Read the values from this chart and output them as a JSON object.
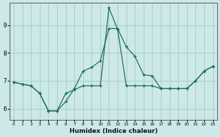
{
  "xlabel": "Humidex (Indice chaleur)",
  "ylabel": "",
  "background_color": "#cce8e8",
  "line_color": "#1a6b5a",
  "grid_color": "#aacccc",
  "xlim": [
    -0.5,
    23.5
  ],
  "ylim": [
    5.6,
    9.8
  ],
  "yticks": [
    6,
    7,
    8,
    9
  ],
  "xtick_labels": [
    "0",
    "1",
    "2",
    "3",
    "4",
    "5",
    "6",
    "7",
    "8",
    "9",
    "10",
    "11",
    "12",
    "13",
    "14",
    "15",
    "16",
    "17",
    "18",
    "19",
    "20",
    "21",
    "22",
    "23"
  ],
  "line1_x": [
    0,
    1,
    2,
    3,
    4,
    5,
    6,
    7,
    8,
    9,
    10,
    11,
    12,
    13,
    14,
    15,
    16,
    17,
    18,
    19,
    20,
    21,
    22,
    23
  ],
  "line1_y": [
    6.95,
    6.88,
    6.82,
    6.55,
    5.92,
    5.92,
    6.55,
    6.68,
    6.82,
    6.82,
    6.82,
    9.62,
    8.85,
    6.82,
    6.82,
    6.82,
    6.82,
    6.72,
    6.72,
    6.72,
    6.72,
    7.0,
    7.35,
    7.52
  ],
  "line2_x": [
    0,
    1,
    2,
    3,
    4,
    5,
    6,
    7,
    8,
    9,
    10,
    11,
    12,
    13,
    14,
    15,
    16,
    17,
    18,
    19,
    20,
    21,
    22,
    23
  ],
  "line2_y": [
    6.95,
    6.88,
    6.82,
    6.55,
    5.92,
    5.92,
    6.25,
    6.72,
    7.35,
    7.48,
    7.72,
    8.88,
    8.88,
    8.22,
    7.88,
    7.22,
    7.18,
    6.72,
    6.72,
    6.72,
    6.72,
    7.0,
    7.35,
    7.52
  ]
}
